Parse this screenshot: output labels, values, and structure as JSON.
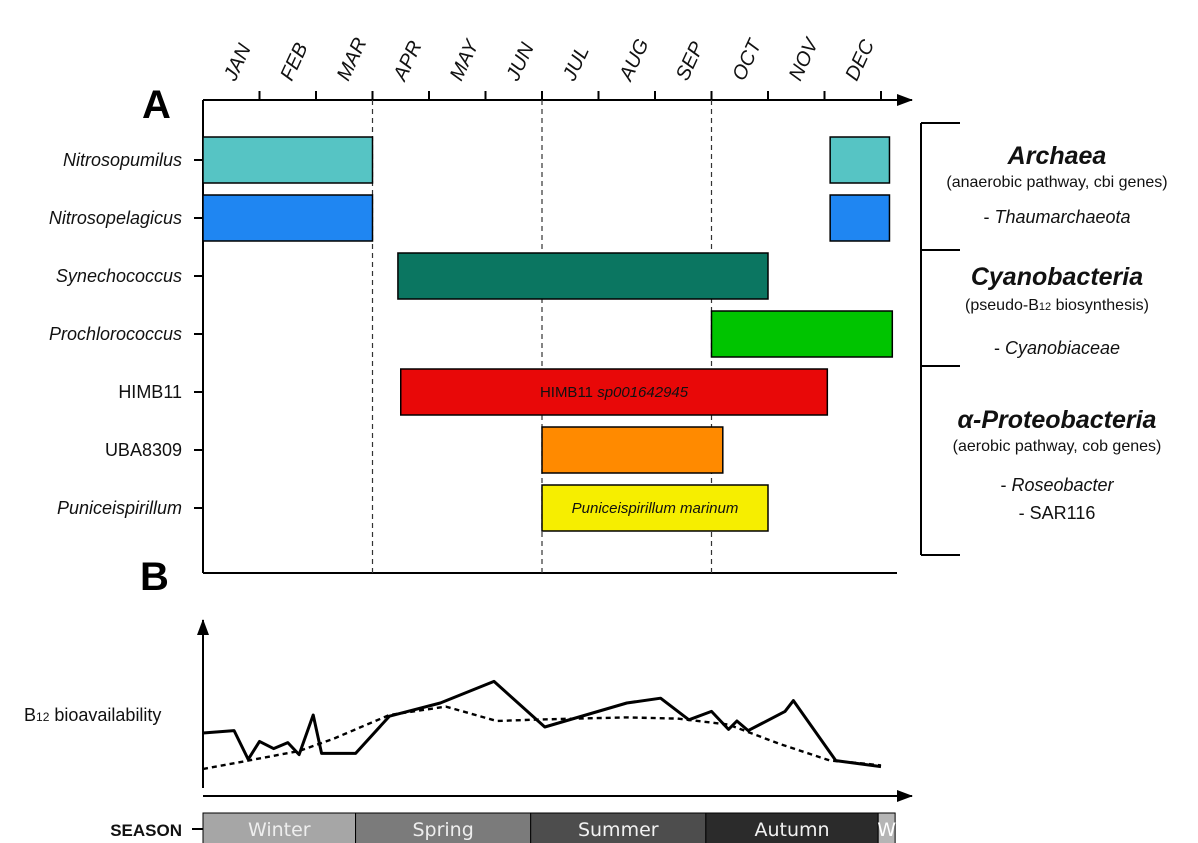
{
  "chart_data": [
    {
      "type": "gantt",
      "panel_label": "A",
      "months": [
        "JAN",
        "FEB",
        "MAR",
        "APR",
        "MAY",
        "JUN",
        "JUL",
        "AUG",
        "SEP",
        "OCT",
        "NOV",
        "DEC"
      ],
      "x_unit": "month (0 = start of January, 12 = end of December)",
      "dashed_month_boundaries": [
        3,
        6,
        9
      ],
      "taxa": [
        {
          "label": "Nitrosopumilus",
          "italic": true,
          "color": "#56c4c4",
          "segments": [
            {
              "start": 0.0,
              "end": 3.0,
              "label": ""
            },
            {
              "start": 11.1,
              "end": 12.15,
              "label": ""
            }
          ]
        },
        {
          "label": "Nitrosopelagicus",
          "italic": true,
          "color": "#1f86f2",
          "segments": [
            {
              "start": 0.0,
              "end": 3.0,
              "label": ""
            },
            {
              "start": 11.1,
              "end": 12.15,
              "label": ""
            }
          ]
        },
        {
          "label": "Synechococcus",
          "italic": true,
          "color": "#0b7661",
          "segments": [
            {
              "start": 3.45,
              "end": 10.0,
              "label": ""
            }
          ]
        },
        {
          "label": "Prochlorococcus",
          "italic": true,
          "color": "#00c400",
          "segments": [
            {
              "start": 9.0,
              "end": 12.2,
              "label": ""
            }
          ]
        },
        {
          "label": "HIMB11",
          "italic": false,
          "color": "#e80808",
          "segments": [
            {
              "start": 3.5,
              "end": 11.05,
              "label": "HIMB11",
              "label_italic": "sp001642945"
            }
          ]
        },
        {
          "label": "UBA8309",
          "italic": false,
          "color": "#ff8a00",
          "segments": [
            {
              "start": 6.0,
              "end": 9.2,
              "label": ""
            }
          ]
        },
        {
          "label": "Puniceispirillum",
          "italic": true,
          "color": "#f6ee00",
          "segments": [
            {
              "start": 6.0,
              "end": 10.0,
              "label": "Puniceispirillum marinum",
              "label_is_italic": true
            }
          ]
        }
      ],
      "groups": [
        {
          "title": "Archaea",
          "subtitle": "(anaerobic pathway, cbi genes)",
          "members": [
            "- Thaumarchaeota"
          ]
        },
        {
          "title": "Cyanobacteria",
          "subtitle_pre": "(pseudo-B",
          "subtitle_sub": "12",
          "subtitle_post": " biosynthesis)",
          "members": [
            "- Cyanobiaceae"
          ]
        },
        {
          "title": "α-Proteobacteria",
          "subtitle": "(aerobic pathway, cob genes)",
          "members": [
            "- Roseobacter",
            "- SAR116"
          ]
        }
      ]
    },
    {
      "type": "line",
      "panel_label": "B",
      "ylabel_pre": "B",
      "ylabel_sub": "12",
      "ylabel_post": " bioavailability",
      "x_unit": "month (0–12)",
      "y_unit": "relative (0–1), no tick labels",
      "series": [
        {
          "style": "solid",
          "x": [
            0,
            0.55,
            0.8,
            1.0,
            1.25,
            1.5,
            1.7,
            1.95,
            2.1,
            2.7,
            3.3,
            4.2,
            5.15,
            6.05,
            7.5,
            8.1,
            8.6,
            9.0,
            9.3,
            9.45,
            9.65,
            10.3,
            10.45,
            11.2,
            12.0
          ],
          "y": [
            0.35,
            0.37,
            0.13,
            0.28,
            0.22,
            0.27,
            0.17,
            0.5,
            0.18,
            0.18,
            0.49,
            0.6,
            0.78,
            0.4,
            0.6,
            0.64,
            0.46,
            0.53,
            0.38,
            0.45,
            0.37,
            0.53,
            0.62,
            0.12,
            0.07
          ]
        },
        {
          "style": "dashed",
          "x": [
            0,
            0.8,
            1.7,
            2.3,
            3.3,
            4.3,
            5.2,
            5.8,
            6.6,
            7.5,
            8.4,
            9.3,
            10.2,
            11.1,
            11.6,
            12.0
          ],
          "y": [
            0.05,
            0.12,
            0.2,
            0.3,
            0.5,
            0.57,
            0.45,
            0.46,
            0.47,
            0.48,
            0.47,
            0.42,
            0.26,
            0.12,
            0.1,
            0.08
          ]
        }
      ]
    }
  ],
  "season_bar": {
    "label": "SEASON",
    "segments": [
      {
        "label": "Winter",
        "start": 0,
        "end": 2.7,
        "fill": "#a6a6a6",
        "text_color": "#eeeeee"
      },
      {
        "label": "Spring",
        "start": 2.7,
        "end": 5.8,
        "fill": "#7b7b7b",
        "text_color": "#eeeeee"
      },
      {
        "label": "Summer",
        "start": 5.8,
        "end": 8.9,
        "fill": "#4d4d4d",
        "text_color": "#f2f2f2"
      },
      {
        "label": "Autumn",
        "start": 8.9,
        "end": 11.95,
        "fill": "#2b2b2b",
        "text_color": "#f2f2f2"
      },
      {
        "label": "W",
        "start": 11.95,
        "end": 12.25,
        "fill": "#b5b5b5",
        "text_color": "#ffffff"
      }
    ]
  },
  "colors": {
    "axis": "#000000",
    "dashed_guides": "#333333"
  }
}
